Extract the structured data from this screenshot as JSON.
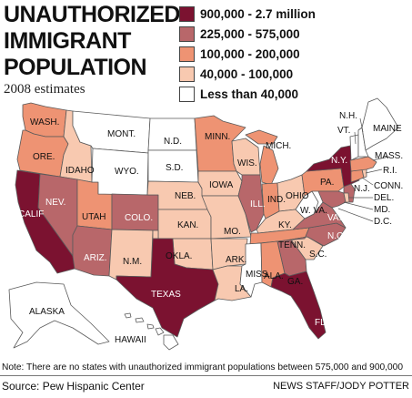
{
  "title_lines": [
    "UNAUTHORIZED",
    "IMMIGRANT",
    "POPULATION"
  ],
  "subtitle": "2008 estimates",
  "legend": [
    {
      "label": "900,000 - 2.7 million",
      "color": "#7b1230"
    },
    {
      "label": "225,000 - 575,000",
      "color": "#b8676a"
    },
    {
      "label": "100,000 - 200,000",
      "color": "#ee9373"
    },
    {
      "label": "40,000 - 100,000",
      "color": "#f8c9b0"
    },
    {
      "label": "Less than 40,000",
      "color": "#ffffff"
    }
  ],
  "states": [
    {
      "name": "WASH.",
      "category": "100,000 - 200,000"
    },
    {
      "name": "ORE.",
      "category": "100,000 - 200,000"
    },
    {
      "name": "CALIF",
      "category": "900,000 - 2.7 million"
    },
    {
      "name": "IDAHO",
      "category": "40,000 - 100,000"
    },
    {
      "name": "NEV.",
      "category": "225,000 - 575,000"
    },
    {
      "name": "UTAH",
      "category": "100,000 - 200,000"
    },
    {
      "name": "ARIZ.",
      "category": "225,000 - 575,000"
    },
    {
      "name": "MONT.",
      "category": "Less than 40,000"
    },
    {
      "name": "WYO.",
      "category": "Less than 40,000"
    },
    {
      "name": "COLO.",
      "category": "225,000 - 575,000"
    },
    {
      "name": "N.M.",
      "category": "40,000 - 100,000"
    },
    {
      "name": "N.D.",
      "category": "Less than 40,000"
    },
    {
      "name": "S.D.",
      "category": "Less than 40,000"
    },
    {
      "name": "NEB.",
      "category": "40,000 - 100,000"
    },
    {
      "name": "KAN.",
      "category": "40,000 - 100,000"
    },
    {
      "name": "OKLA.",
      "category": "40,000 - 100,000"
    },
    {
      "name": "TEXAS",
      "category": "900,000 - 2.7 million"
    },
    {
      "name": "MINN.",
      "category": "100,000 - 200,000"
    },
    {
      "name": "IOWA",
      "category": "40,000 - 100,000"
    },
    {
      "name": "MO.",
      "category": "40,000 - 100,000"
    },
    {
      "name": "ARK.",
      "category": "40,000 - 100,000"
    },
    {
      "name": "LA.",
      "category": "40,000 - 100,000"
    },
    {
      "name": "WIS.",
      "category": "40,000 - 100,000"
    },
    {
      "name": "ILL.",
      "category": "225,000 - 575,000"
    },
    {
      "name": "MICH.",
      "category": "100,000 - 200,000"
    },
    {
      "name": "IND.",
      "category": "100,000 - 200,000"
    },
    {
      "name": "OHIO",
      "category": "40,000 - 100,000"
    },
    {
      "name": "KY.",
      "category": "40,000 - 100,000"
    },
    {
      "name": "TENN.",
      "category": "100,000 - 200,000"
    },
    {
      "name": "MISS.",
      "category": "Less than 40,000"
    },
    {
      "name": "ALA.",
      "category": "100,000 - 200,000"
    },
    {
      "name": "GA.",
      "category": "225,000 - 575,000"
    },
    {
      "name": "FLA.",
      "category": "900,000 - 2.7 million"
    },
    {
      "name": "S.C.",
      "category": "40,000 - 100,000"
    },
    {
      "name": "N.C.",
      "category": "225,000 - 575,000"
    },
    {
      "name": "VA.",
      "category": "225,000 - 575,000"
    },
    {
      "name": "W. VA.",
      "category": "Less than 40,000"
    },
    {
      "name": "PA.",
      "category": "100,000 - 200,000"
    },
    {
      "name": "N.Y.",
      "category": "900,000 - 2.7 million"
    },
    {
      "name": "MAINE",
      "category": "Less than 40,000"
    },
    {
      "name": "N.H.",
      "category": "Less than 40,000"
    },
    {
      "name": "VT.",
      "category": "Less than 40,000"
    },
    {
      "name": "MASS.",
      "category": "100,000 - 200,000"
    },
    {
      "name": "R.I.",
      "category": "40,000 - 100,000"
    },
    {
      "name": "CONN.",
      "category": "100,000 - 200,000"
    },
    {
      "name": "N.J.",
      "category": "225,000 - 575,000"
    },
    {
      "name": "DEL.",
      "category": "40,000 - 100,000"
    },
    {
      "name": "MD.",
      "category": "225,000 - 575,000"
    },
    {
      "name": "D.C.",
      "category": "40,000 - 100,000"
    },
    {
      "name": "ALASKA",
      "category": "Less than 40,000"
    },
    {
      "name": "HAWAII",
      "category": "Less than 40,000"
    }
  ],
  "note": "Note: There are no states with unauthorized immigrant populations between 575,000 and 900,000",
  "source": "Source: Pew Hispanic Center",
  "credit": "NEWS STAFF/JODY POTTER"
}
